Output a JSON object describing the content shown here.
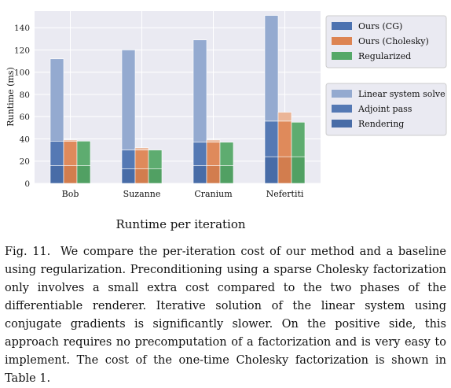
{
  "chart_data": {
    "type": "bar",
    "title": "Runtime per iteration",
    "ylabel": "Runtime (ms)",
    "xlabel": "",
    "ylim": [
      0,
      155
    ],
    "yticks": [
      0,
      20,
      40,
      60,
      80,
      100,
      120,
      140
    ],
    "categories": [
      "Bob",
      "Suzanne",
      "Cranium",
      "Nefertiti"
    ],
    "grid": true,
    "methods": [
      {
        "name": "Ours (CG)",
        "color": "#4c72b0"
      },
      {
        "name": "Ours (Cholesky)",
        "color": "#dd8452"
      },
      {
        "name": "Regularized",
        "color": "#55a868"
      }
    ],
    "phases": [
      {
        "name": "Linear system solve",
        "shade": "light"
      },
      {
        "name": "Adjoint pass",
        "shade": "medium"
      },
      {
        "name": "Rendering",
        "shade": "dark"
      }
    ],
    "series": [
      {
        "name": "Ours (CG)",
        "rendering": [
          16,
          13,
          16,
          24
        ],
        "adjoint_pass": [
          22,
          17,
          21,
          32
        ],
        "linear_system_solve": [
          74,
          90,
          92,
          95
        ]
      },
      {
        "name": "Ours (Cholesky)",
        "rendering": [
          16,
          13,
          16,
          24
        ],
        "adjoint_pass": [
          22,
          17,
          21,
          32
        ],
        "linear_system_solve": [
          1,
          2,
          2,
          8
        ]
      },
      {
        "name": "Regularized",
        "rendering": [
          16,
          13,
          16,
          24
        ],
        "adjoint_pass": [
          22,
          17,
          21,
          31
        ],
        "linear_system_solve": [
          0,
          0,
          0,
          0
        ]
      }
    ]
  },
  "caption": {
    "label": "Fig. 11.",
    "text": "We compare the per-iteration cost of our method and a baseline using regularization. Preconditioning using a sparse Cholesky factorization only involves a small extra cost compared to the two phases of the differentiable renderer. Iterative solution of the linear system using conjugate gradients is significantly slower. On the positive side, this approach requires no precomputation of a factorization and is very easy to implement. The cost of the one-time Cholesky factorization is shown in Table 1."
  }
}
